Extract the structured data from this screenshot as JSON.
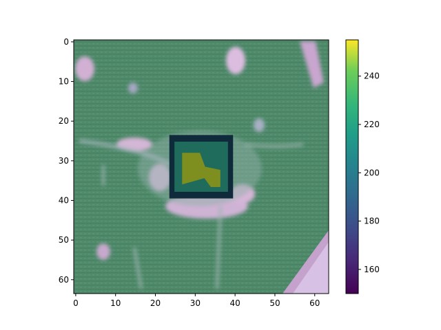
{
  "chart_data": {
    "type": "heatmap",
    "title": "",
    "xlabel": "",
    "ylabel": "",
    "image_size": [
      64,
      64
    ],
    "xlim": [
      -0.5,
      63.5
    ],
    "ylim": [
      63.5,
      -0.5
    ],
    "x_ticks": [
      0,
      10,
      20,
      30,
      40,
      50,
      60
    ],
    "y_ticks": [
      0,
      10,
      20,
      30,
      40,
      50,
      60
    ],
    "overlay_box": {
      "x": [
        24,
        39
      ],
      "y": [
        24,
        39
      ]
    },
    "colorbar": {
      "colormap": "viridis",
      "range": [
        150,
        255
      ],
      "ticks": [
        160,
        180,
        200,
        220,
        240
      ]
    },
    "colors": {
      "background_green": "#4f8a6a",
      "highlight_pink": "#d6b4d8",
      "box_outline": "#0f2a3a",
      "box_inner_teal": "#1f6c5c",
      "box_olive": "#7e8f1f"
    }
  }
}
